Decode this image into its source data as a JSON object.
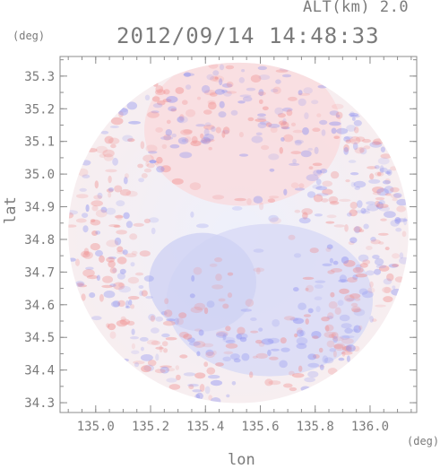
{
  "header": {
    "altitude": "ALT(km) 2.0",
    "timestamp": "2012/09/14 14:48:33"
  },
  "chart_data": {
    "type": "heatmap",
    "title": "2012/09/14 14:48:33",
    "subtitle": "ALT(km) 2.0",
    "xlabel": "lon",
    "ylabel": "lat",
    "x_unit": "(deg)",
    "y_unit": "(deg)",
    "xlim": [
      134.87,
      136.17
    ],
    "ylim": [
      34.27,
      35.36
    ],
    "x_ticks": [
      {
        "value": 135.0,
        "label": "135.0"
      },
      {
        "value": 135.2,
        "label": "135.2"
      },
      {
        "value": 135.4,
        "label": "135.4"
      },
      {
        "value": 135.6,
        "label": "135.6"
      },
      {
        "value": 135.8,
        "label": "135.8"
      },
      {
        "value": 136.0,
        "label": "136.0"
      }
    ],
    "y_ticks": [
      {
        "value": 34.3,
        "label": "34.3"
      },
      {
        "value": 34.4,
        "label": "34.4"
      },
      {
        "value": 34.5,
        "label": "34.5"
      },
      {
        "value": 34.6,
        "label": "34.6"
      },
      {
        "value": 34.7,
        "label": "34.7"
      },
      {
        "value": 34.8,
        "label": "34.8"
      },
      {
        "value": 34.9,
        "label": "34.9"
      },
      {
        "value": 35.0,
        "label": "35.0"
      },
      {
        "value": 35.1,
        "label": "35.1"
      },
      {
        "value": 35.2,
        "label": "35.2"
      },
      {
        "value": 35.3,
        "label": "35.3"
      }
    ],
    "radar_center": {
      "lon": 135.52,
      "lat": 34.82
    },
    "radar_radius_deg_lon": 0.62,
    "grid": false,
    "colors": {
      "positive": "#f08a8a",
      "negative": "#8a8ef0",
      "axis": "#8c8c8c"
    }
  }
}
